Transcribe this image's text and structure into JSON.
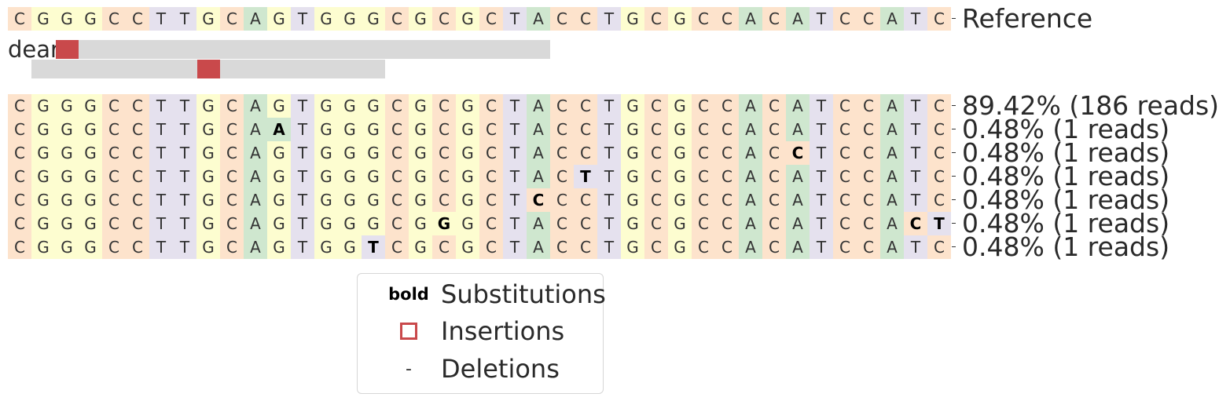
{
  "colors": {
    "A": "#cfe7cf",
    "C": "#fde3cc",
    "G": "#fdfdd0",
    "T": "#e5e1ee",
    "insertion": "#c9494b",
    "guide_bar": "#d9d9d9"
  },
  "reference": {
    "label": "Reference",
    "sequence": "CGGGCCTTGCAGTGGGCGCGCTACCTGCGCCACATCCATC"
  },
  "guide": {
    "label": "dear"
  },
  "alleles": [
    {
      "label": "89.42% (186 reads)",
      "sequence": "CGGGCCTTGCAGTGGGCGCGCTACCTGCGCCACATCCATC",
      "subs": []
    },
    {
      "label": "0.48% (1 reads)",
      "sequence": "CGGGCCTTGCAATGGGCGCGCTACCTGCGCCACATCCATC",
      "subs": [
        11
      ]
    },
    {
      "label": "0.48% (1 reads)",
      "sequence": "CGGGCCTTGCAGTGGGCGCGCTACCTGCGCCACCTCCATC",
      "subs": [
        33
      ]
    },
    {
      "label": "0.48% (1 reads)",
      "sequence": "CGGGCCTTGCAGTGGGCGCGCTACTTGCGCCACATCCATC",
      "subs": [
        24
      ]
    },
    {
      "label": "0.48% (1 reads)",
      "sequence": "CGGGCCTTGCAGTGGGCGCGCTCCCTGCGCCACATCCATC",
      "subs": [
        22
      ]
    },
    {
      "label": "0.48% (1 reads)",
      "sequence": "CGGGCCTTGCAGTGGGCGGGCTACCTGCGCCACATCCACT",
      "subs": [
        18,
        38,
        39
      ]
    },
    {
      "label": "0.48% (1 reads)",
      "sequence": "CGGGCCTTGCAGTGGTCGCGCTACCTGCGCCACATCCATC",
      "subs": [
        15
      ]
    }
  ],
  "legend": {
    "substitutions": {
      "sample": "bold",
      "label": "Substitutions"
    },
    "insertions": {
      "label": "Insertions"
    },
    "deletions": {
      "sample": "-",
      "label": "Deletions"
    }
  }
}
